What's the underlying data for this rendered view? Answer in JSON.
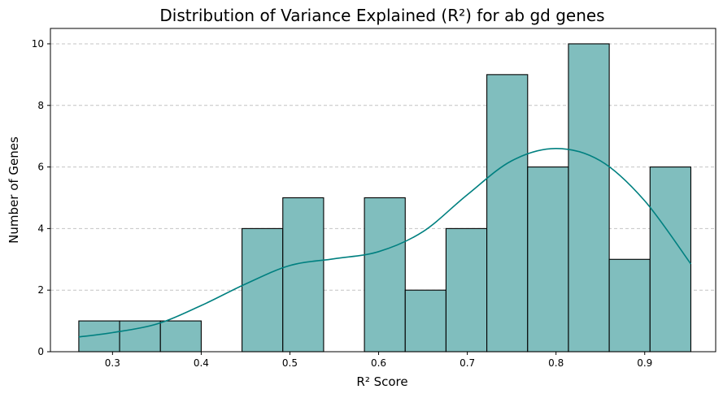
{
  "chart_data": {
    "type": "bar",
    "subtype": "histogram",
    "title": "Distribution of Variance Explained (R²) for ab gd genes",
    "xlabel": "R² Score",
    "ylabel": "Number of Genes",
    "xlim": [
      0.23,
      0.98
    ],
    "ylim": [
      0,
      10.5
    ],
    "x_ticks": [
      0.3,
      0.4,
      0.5,
      0.6,
      0.7,
      0.8,
      0.9
    ],
    "x_tick_labels": [
      "0.3",
      "0.4",
      "0.5",
      "0.6",
      "0.7",
      "0.8",
      "0.9"
    ],
    "y_ticks": [
      0,
      2,
      4,
      6,
      8,
      10
    ],
    "y_tick_labels": [
      "0",
      "2",
      "4",
      "6",
      "8",
      "10"
    ],
    "grid": "y-dashed",
    "legend": "none",
    "bins": [
      {
        "start": 0.262,
        "end": 0.308,
        "count": 1
      },
      {
        "start": 0.308,
        "end": 0.354,
        "count": 1
      },
      {
        "start": 0.354,
        "end": 0.4,
        "count": 1
      },
      {
        "start": 0.4,
        "end": 0.446,
        "count": 0
      },
      {
        "start": 0.446,
        "end": 0.492,
        "count": 4
      },
      {
        "start": 0.492,
        "end": 0.538,
        "count": 5
      },
      {
        "start": 0.538,
        "end": 0.584,
        "count": 0
      },
      {
        "start": 0.584,
        "end": 0.63,
        "count": 5
      },
      {
        "start": 0.63,
        "end": 0.676,
        "count": 2
      },
      {
        "start": 0.676,
        "end": 0.722,
        "count": 4
      },
      {
        "start": 0.722,
        "end": 0.768,
        "count": 9
      },
      {
        "start": 0.768,
        "end": 0.814,
        "count": 6
      },
      {
        "start": 0.814,
        "end": 0.86,
        "count": 10
      },
      {
        "start": 0.86,
        "end": 0.906,
        "count": 3
      },
      {
        "start": 0.906,
        "end": 0.952,
        "count": 6
      }
    ],
    "kde": {
      "x": [
        0.262,
        0.3,
        0.35,
        0.4,
        0.45,
        0.5,
        0.55,
        0.6,
        0.65,
        0.7,
        0.75,
        0.8,
        0.85,
        0.9,
        0.952
      ],
      "y": [
        0.48,
        0.62,
        0.9,
        1.5,
        2.2,
        2.8,
        3.02,
        3.25,
        3.9,
        5.1,
        6.2,
        6.6,
        6.2,
        4.9,
        2.85
      ]
    },
    "colors": {
      "bar_fill": "#80bebe",
      "bar_edge": "#000000",
      "kde_line": "#008080",
      "grid": "#c4c4c4"
    }
  }
}
